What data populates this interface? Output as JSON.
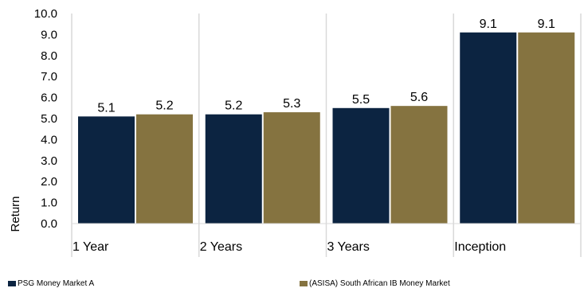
{
  "chart_data": {
    "type": "bar",
    "categories": [
      "1 Year",
      "2 Years",
      "3 Years",
      "Inception"
    ],
    "series": [
      {
        "name": "PSG Money Market A",
        "values": [
          5.1,
          5.2,
          5.5,
          9.1
        ],
        "color": "#0c2441"
      },
      {
        "name": "(ASISA) South African IB Money Market",
        "values": [
          5.2,
          5.3,
          5.6,
          9.1
        ],
        "color": "#857340"
      }
    ],
    "title": "",
    "xlabel": "",
    "ylabel": "Return",
    "ylim": [
      0,
      10
    ],
    "yticks": [
      "0.0",
      "1.0",
      "2.0",
      "3.0",
      "4.0",
      "5.0",
      "6.0",
      "7.0",
      "8.0",
      "9.0",
      "10.0"
    ],
    "data_labels": [
      [
        "5.1",
        "5.2",
        "5.5",
        "9.1"
      ],
      [
        "5.2",
        "5.3",
        "5.6",
        "9.1"
      ]
    ],
    "grid": "vertical category separators",
    "legend_position": "bottom"
  }
}
